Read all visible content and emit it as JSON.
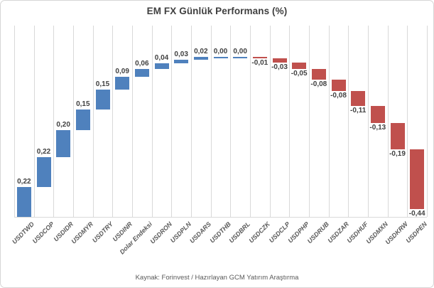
{
  "chart_data": {
    "type": "bar",
    "subtype": "waterfall",
    "title": "EM FX Günlük Performans (%)",
    "categories": [
      "USDTWD",
      "USDCOP",
      "USDIDR",
      "USDMYR",
      "USDTRY",
      "USDINR",
      "Dolar Endeksi",
      "USDRON",
      "USDPLN",
      "USDARS",
      "USDTHB",
      "USDBRL",
      "USDCZK",
      "USDCLP",
      "USDPHP",
      "USDRUB",
      "USDZAR",
      "USDHUF",
      "USDMXN",
      "USDKRW",
      "USDPEN"
    ],
    "values": [
      0.22,
      0.22,
      0.2,
      0.15,
      0.15,
      0.09,
      0.06,
      0.04,
      0.03,
      0.02,
      0.0,
      0.0,
      -0.01,
      -0.03,
      -0.05,
      -0.08,
      -0.08,
      -0.11,
      -0.13,
      -0.19,
      -0.44
    ],
    "value_labels": [
      "0,22",
      "0,22",
      "0,20",
      "0,15",
      "0,15",
      "0,09",
      "0,06",
      "0,04",
      "0,03",
      "0,02",
      "0,00",
      "0,00",
      "-0,01",
      "-0,03",
      "-0,05",
      "-0,08",
      "-0,08",
      "-0,11",
      "-0,13",
      "-0,19",
      "-0,44"
    ],
    "ylim": [
      0,
      1.41
    ],
    "grid": "vertical-only",
    "legend_position": "none",
    "colors": {
      "positive_bar": "#4F81BD",
      "negative_bar": "#C0504D",
      "gridline": "#D9D9D9",
      "axis_line": "#D9D9D9",
      "value_label": "#404040",
      "axis_label": "#595959",
      "title": "#3F3F3F"
    }
  },
  "footer": {
    "source": "Kaynak: Forinvest / Hazırlayan GCM Yatırım Araştırma"
  }
}
